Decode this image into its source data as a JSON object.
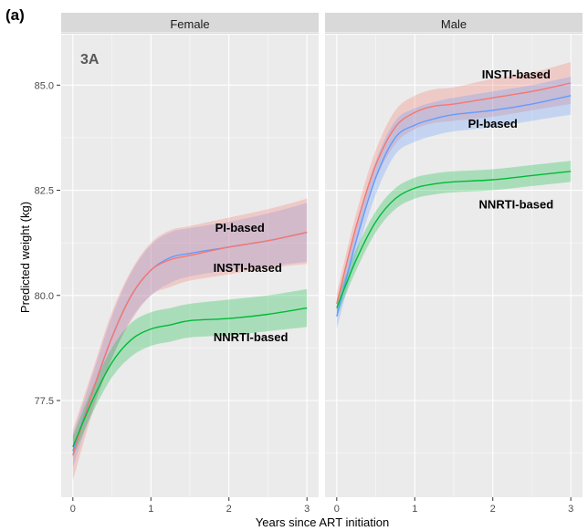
{
  "figure_tag": "(a)",
  "panel_tag": "3A",
  "chart_data": {
    "type": "line",
    "xlabel": "Years since ART initiation",
    "ylabel": "Predicted weight (kg)",
    "xlim": [
      -0.15,
      3.15
    ],
    "ylim": [
      75.2,
      86.2
    ],
    "x_ticks": [
      0,
      1,
      2,
      3
    ],
    "y_ticks": [
      77.5,
      80.0,
      82.5,
      85.0
    ],
    "y_tick_labels": [
      "77.5",
      "80.0",
      "82.5",
      "85.0"
    ],
    "grid": true,
    "x": [
      0,
      0.25,
      0.5,
      0.75,
      1.0,
      1.25,
      1.5,
      2.0,
      2.5,
      3.0
    ],
    "colors": {
      "INSTI-based": "#f8766d",
      "NNRTI-based": "#00ba38",
      "PI-based": "#619cff"
    },
    "panels": [
      {
        "facet": "Female",
        "series": [
          {
            "name": "PI-based",
            "values": [
              76.3,
              77.7,
              79.0,
              80.0,
              80.6,
              80.9,
              81.0,
              81.15,
              81.3,
              81.5
            ],
            "lower": [
              75.9,
              77.3,
              78.5,
              79.45,
              80.0,
              80.3,
              80.45,
              80.6,
              80.7,
              80.8
            ],
            "upper": [
              76.7,
              78.1,
              79.5,
              80.55,
              81.2,
              81.5,
              81.6,
              81.75,
              81.95,
              82.2
            ]
          },
          {
            "name": "INSTI-based",
            "values": [
              76.2,
              77.7,
              79.0,
              80.0,
              80.6,
              80.85,
              80.95,
              81.15,
              81.3,
              81.5
            ],
            "lower": [
              75.6,
              77.2,
              78.5,
              79.4,
              80.0,
              80.2,
              80.35,
              80.5,
              80.65,
              80.75
            ],
            "upper": [
              76.8,
              78.2,
              79.6,
              80.6,
              81.25,
              81.55,
              81.65,
              81.85,
              82.05,
              82.3
            ]
          },
          {
            "name": "NNRTI-based",
            "values": [
              76.4,
              77.5,
              78.4,
              78.95,
              79.2,
              79.3,
              79.4,
              79.45,
              79.55,
              79.7
            ],
            "lower": [
              76.15,
              77.2,
              78.05,
              78.55,
              78.8,
              78.9,
              79.0,
              79.05,
              79.15,
              79.25
            ],
            "upper": [
              76.65,
              77.8,
              78.75,
              79.35,
              79.6,
              79.7,
              79.8,
              79.9,
              80.0,
              80.15
            ]
          }
        ],
        "labels": [
          {
            "text": "PI-based",
            "x": 2.14,
            "y": 81.6
          },
          {
            "text": "INSTI-based",
            "x": 2.24,
            "y": 80.65
          },
          {
            "text": "NNRTI-based",
            "x": 2.28,
            "y": 79.0
          }
        ]
      },
      {
        "facet": "Male",
        "series": [
          {
            "name": "INSTI-based",
            "values": [
              79.8,
              81.65,
              83.1,
              84.0,
              84.35,
              84.5,
              84.55,
              84.7,
              84.85,
              85.05
            ],
            "lower": [
              79.55,
              81.35,
              82.75,
              83.6,
              83.95,
              84.1,
              84.15,
              84.25,
              84.4,
              84.55
            ],
            "upper": [
              80.05,
              81.95,
              83.45,
              84.4,
              84.75,
              84.9,
              84.95,
              85.15,
              85.3,
              85.55
            ]
          },
          {
            "name": "PI-based",
            "values": [
              79.5,
              81.3,
              82.8,
              83.75,
              84.05,
              84.2,
              84.3,
              84.4,
              84.55,
              84.75
            ],
            "lower": [
              79.2,
              80.95,
              82.4,
              83.35,
              83.65,
              83.8,
              83.9,
              84.0,
              84.15,
              84.3
            ],
            "upper": [
              79.8,
              81.65,
              83.2,
              84.15,
              84.45,
              84.6,
              84.7,
              84.85,
              85.0,
              85.2
            ]
          },
          {
            "name": "NNRTI-based",
            "values": [
              79.7,
              80.85,
              81.75,
              82.3,
              82.55,
              82.65,
              82.7,
              82.75,
              82.85,
              82.95
            ],
            "lower": [
              79.5,
              80.6,
              81.5,
              82.05,
              82.3,
              82.4,
              82.45,
              82.5,
              82.6,
              82.7
            ],
            "upper": [
              79.9,
              81.1,
              82.0,
              82.55,
              82.8,
              82.9,
              82.95,
              83.0,
              83.1,
              83.2
            ]
          }
        ],
        "labels": [
          {
            "text": "INSTI-based",
            "x": 2.3,
            "y": 85.25
          },
          {
            "text": "PI-based",
            "x": 2.0,
            "y": 84.07
          },
          {
            "text": "NNRTI-based",
            "x": 2.3,
            "y": 82.15
          }
        ]
      }
    ]
  }
}
